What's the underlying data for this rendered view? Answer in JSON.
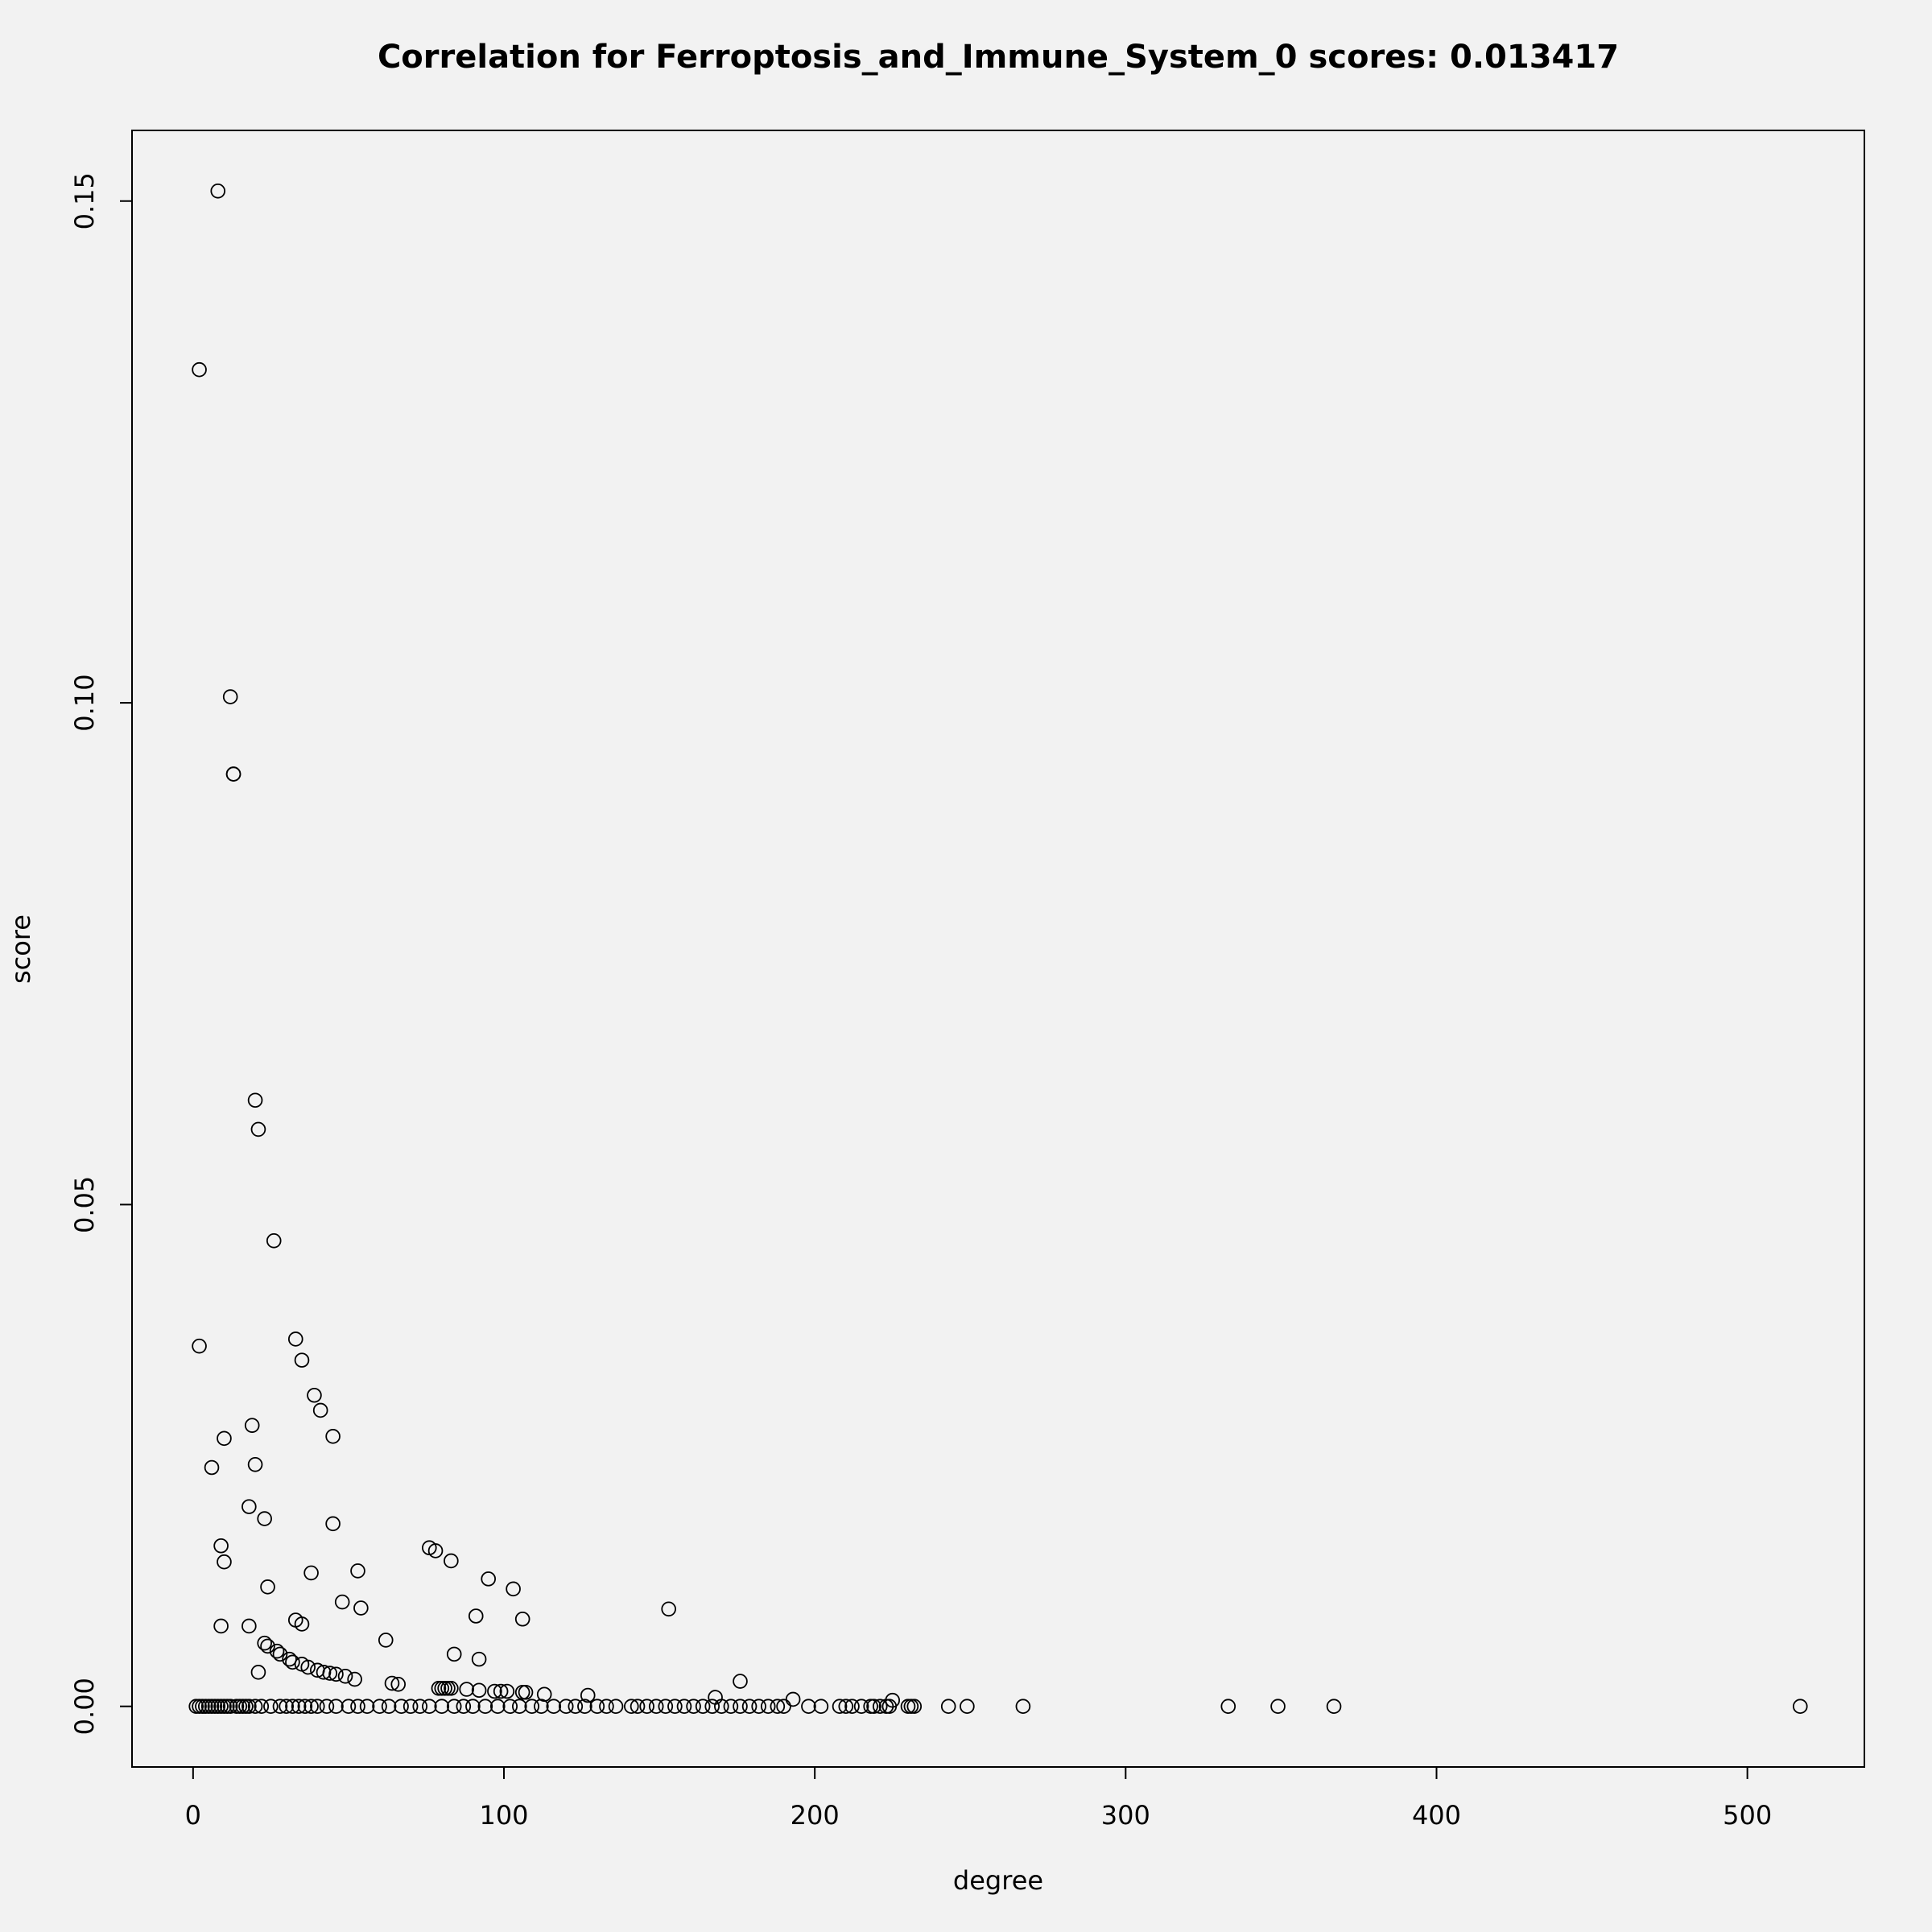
{
  "chart_data": {
    "type": "scatter",
    "title": "Correlation for Ferroptosis_and_Immune_System_0 scores: 0.013417",
    "x_label": "degree",
    "y_label": "score",
    "color": "#000000",
    "xlim": [
      -19.64,
      537.64
    ],
    "xticks": [
      0,
      100,
      200,
      300,
      400,
      500
    ],
    "ylim": [
      -0.00604,
      0.15704
    ],
    "yticks": [
      {
        "value": 0,
        "label": "0.00"
      },
      {
        "value": 0.05,
        "label": "0.05"
      },
      {
        "value": 0.1,
        "label": "0.10"
      },
      {
        "value": 0.15,
        "label": "0.15"
      }
    ],
    "x": [
      2,
      8,
      12,
      13,
      13,
      20,
      21,
      26,
      2,
      33,
      35,
      39,
      41,
      45,
      19,
      10,
      6,
      20,
      18,
      23,
      45,
      9,
      10,
      76,
      78,
      83,
      38,
      53,
      95,
      103,
      24,
      48,
      54,
      153,
      33,
      35,
      91,
      106,
      9,
      18,
      62,
      23,
      24,
      27,
      28,
      31,
      32,
      35,
      37,
      40,
      42,
      44,
      46,
      49,
      52,
      84,
      92,
      21,
      64,
      66,
      79,
      80,
      81,
      82,
      83,
      88,
      92,
      97,
      99,
      101,
      106,
      107,
      113,
      127,
      168,
      176,
      193,
      225,
      1,
      2,
      3,
      4,
      5,
      6,
      7,
      8,
      9,
      10,
      11,
      12,
      14,
      15,
      16,
      17,
      18,
      20,
      22,
      25,
      28,
      30,
      32,
      34,
      36,
      38,
      40,
      43,
      46,
      50,
      53,
      56,
      60,
      63,
      67,
      70,
      73,
      76,
      80,
      84,
      87,
      90,
      94,
      98,
      102,
      105,
      109,
      112,
      116,
      120,
      123,
      126,
      130,
      133,
      136,
      141,
      143,
      146,
      149,
      152,
      155,
      158,
      161,
      164,
      167,
      170,
      173,
      176,
      179,
      182,
      185,
      188,
      190,
      198,
      202,
      208,
      210,
      212,
      215,
      218,
      219,
      221,
      223,
      224,
      230,
      231,
      232,
      243,
      249,
      267,
      333,
      349,
      367,
      517
    ],
    "y": [
      0.1332,
      0.151,
      0.1006,
      0.0929,
      0.0929,
      0.0604,
      0.0575,
      0.0464,
      0.0359,
      0.0366,
      0.0345,
      0.031,
      0.0295,
      0.0269,
      0.028,
      0.0267,
      0.0238,
      0.0241,
      0.0199,
      0.0187,
      0.0182,
      0.016,
      0.0144,
      0.0158,
      0.0155,
      0.0145,
      0.0133,
      0.0135,
      0.0127,
      0.0117,
      0.0119,
      0.0104,
      0.0098,
      0.0097,
      0.0086,
      0.0082,
      0.009,
      0.0087,
      0.008,
      0.008,
      0.0066,
      0.0063,
      0.006,
      0.0055,
      0.0052,
      0.0047,
      0.0044,
      0.0042,
      0.0039,
      0.0036,
      0.0034,
      0.0033,
      0.0032,
      0.003,
      0.0027,
      0.0052,
      0.0047,
      0.0034,
      0.0023,
      0.0022,
      0.0018,
      0.0018,
      0.0018,
      0.0018,
      0.0018,
      0.0017,
      0.0016,
      0.0015,
      0.0015,
      0.0015,
      0.0014,
      0.0014,
      0.0012,
      0.0011,
      0.0009,
      0.0025,
      0.0007,
      0.0006,
      0,
      0,
      0,
      0,
      0,
      0,
      0,
      0,
      0,
      0,
      0,
      0,
      0,
      0,
      0,
      0,
      0,
      0,
      0,
      0,
      0,
      0,
      0,
      0,
      0,
      0,
      0,
      0,
      0,
      0,
      0,
      0,
      0,
      0,
      0,
      0,
      0,
      0,
      0,
      0,
      0,
      0,
      0,
      0,
      0,
      0,
      0,
      0,
      0,
      0,
      0,
      0,
      0,
      0,
      0,
      0,
      0,
      0,
      0,
      0,
      0,
      0,
      0,
      0,
      0,
      0,
      0,
      0,
      0,
      0,
      0,
      0,
      0,
      0,
      0,
      0,
      0,
      0,
      0,
      0,
      0,
      0,
      0,
      0,
      0,
      0,
      0,
      0,
      0,
      0,
      0,
      0,
      0,
      0
    ]
  }
}
